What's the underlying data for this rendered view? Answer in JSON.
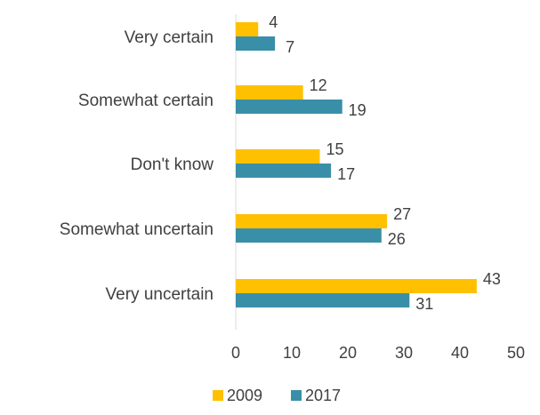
{
  "chart_data": {
    "type": "bar",
    "orientation": "horizontal",
    "categories": [
      "Very certain",
      "Somewhat certain",
      "Don't know",
      "Somewhat uncertain",
      "Very uncertain"
    ],
    "series": [
      {
        "name": "2009",
        "color": "#FFC000",
        "values": [
          4,
          12,
          15,
          27,
          43
        ]
      },
      {
        "name": "2017",
        "color": "#3A8FA8",
        "values": [
          7,
          19,
          17,
          26,
          31
        ]
      }
    ],
    "xlim": [
      0,
      50
    ],
    "x_ticks": [
      0,
      10,
      20,
      30,
      40,
      50
    ],
    "grid": false,
    "legend_position": "bottom",
    "data_labels": true
  }
}
